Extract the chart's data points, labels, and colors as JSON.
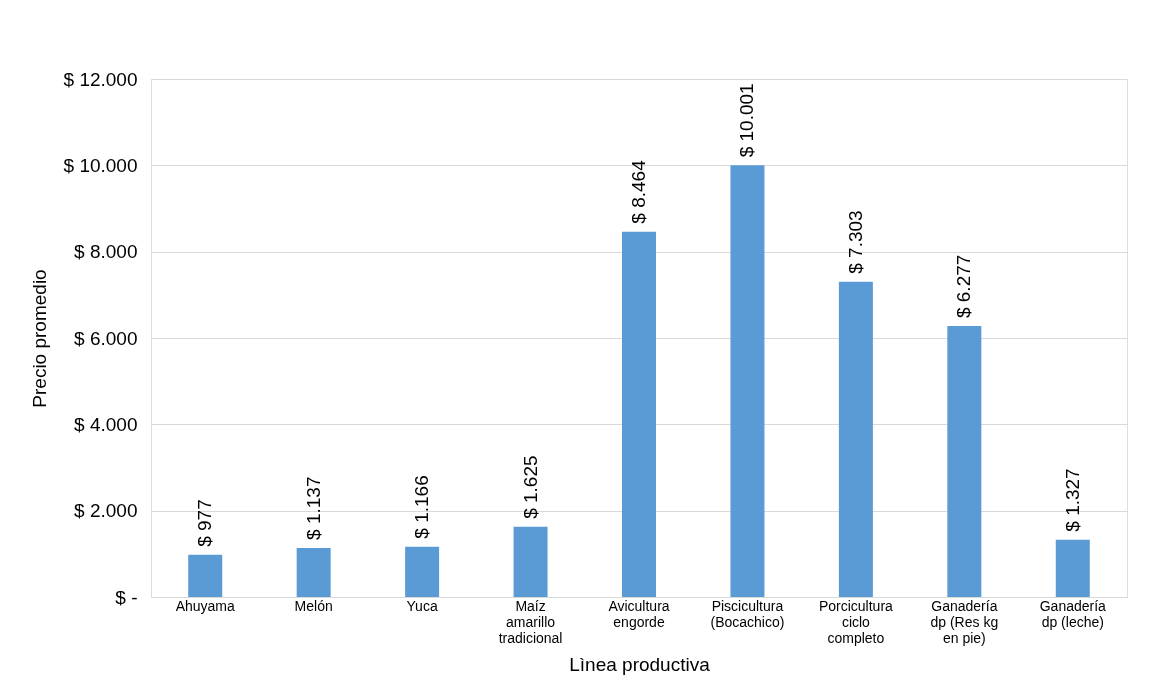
{
  "chart_data": {
    "type": "bar",
    "xlabel": "Lìnea productiva",
    "ylabel": "Precio promedio",
    "categories": [
      "Ahuyama",
      "Melón",
      "Yuca",
      "Maíz\namarillo\ntradicional",
      "Avicultura\nengorde",
      "Piscicultura\n(Bocachico)",
      "Porcicultura\nciclo\ncompleto",
      "Ganadería\ndp (Res kg\nen pie)",
      "Ganadería\ndp (leche)"
    ],
    "values": [
      977,
      1137,
      1166,
      1625,
      8464,
      10001,
      7303,
      6277,
      1327
    ],
    "value_labels": [
      "$ 977",
      "$ 1.137",
      "$ 1.166",
      "$ 1.625",
      "$ 8.464",
      "$ 10.001",
      "$ 7.303",
      "$ 6.277",
      "$ 1.327"
    ],
    "color": "#5b9bd5",
    "ylim": [
      0,
      12000
    ],
    "yticks": [
      {
        "value": 0,
        "label": "$ -"
      },
      {
        "value": 2000,
        "label": "$ 2.000"
      },
      {
        "value": 4000,
        "label": "$ 4.000"
      },
      {
        "value": 6000,
        "label": "$ 6.000"
      },
      {
        "value": 8000,
        "label": "$ 8.000"
      },
      {
        "value": 10000,
        "label": "$ 10.000"
      },
      {
        "value": 12000,
        "label": "$ 12.000"
      }
    ],
    "grid": "y"
  }
}
